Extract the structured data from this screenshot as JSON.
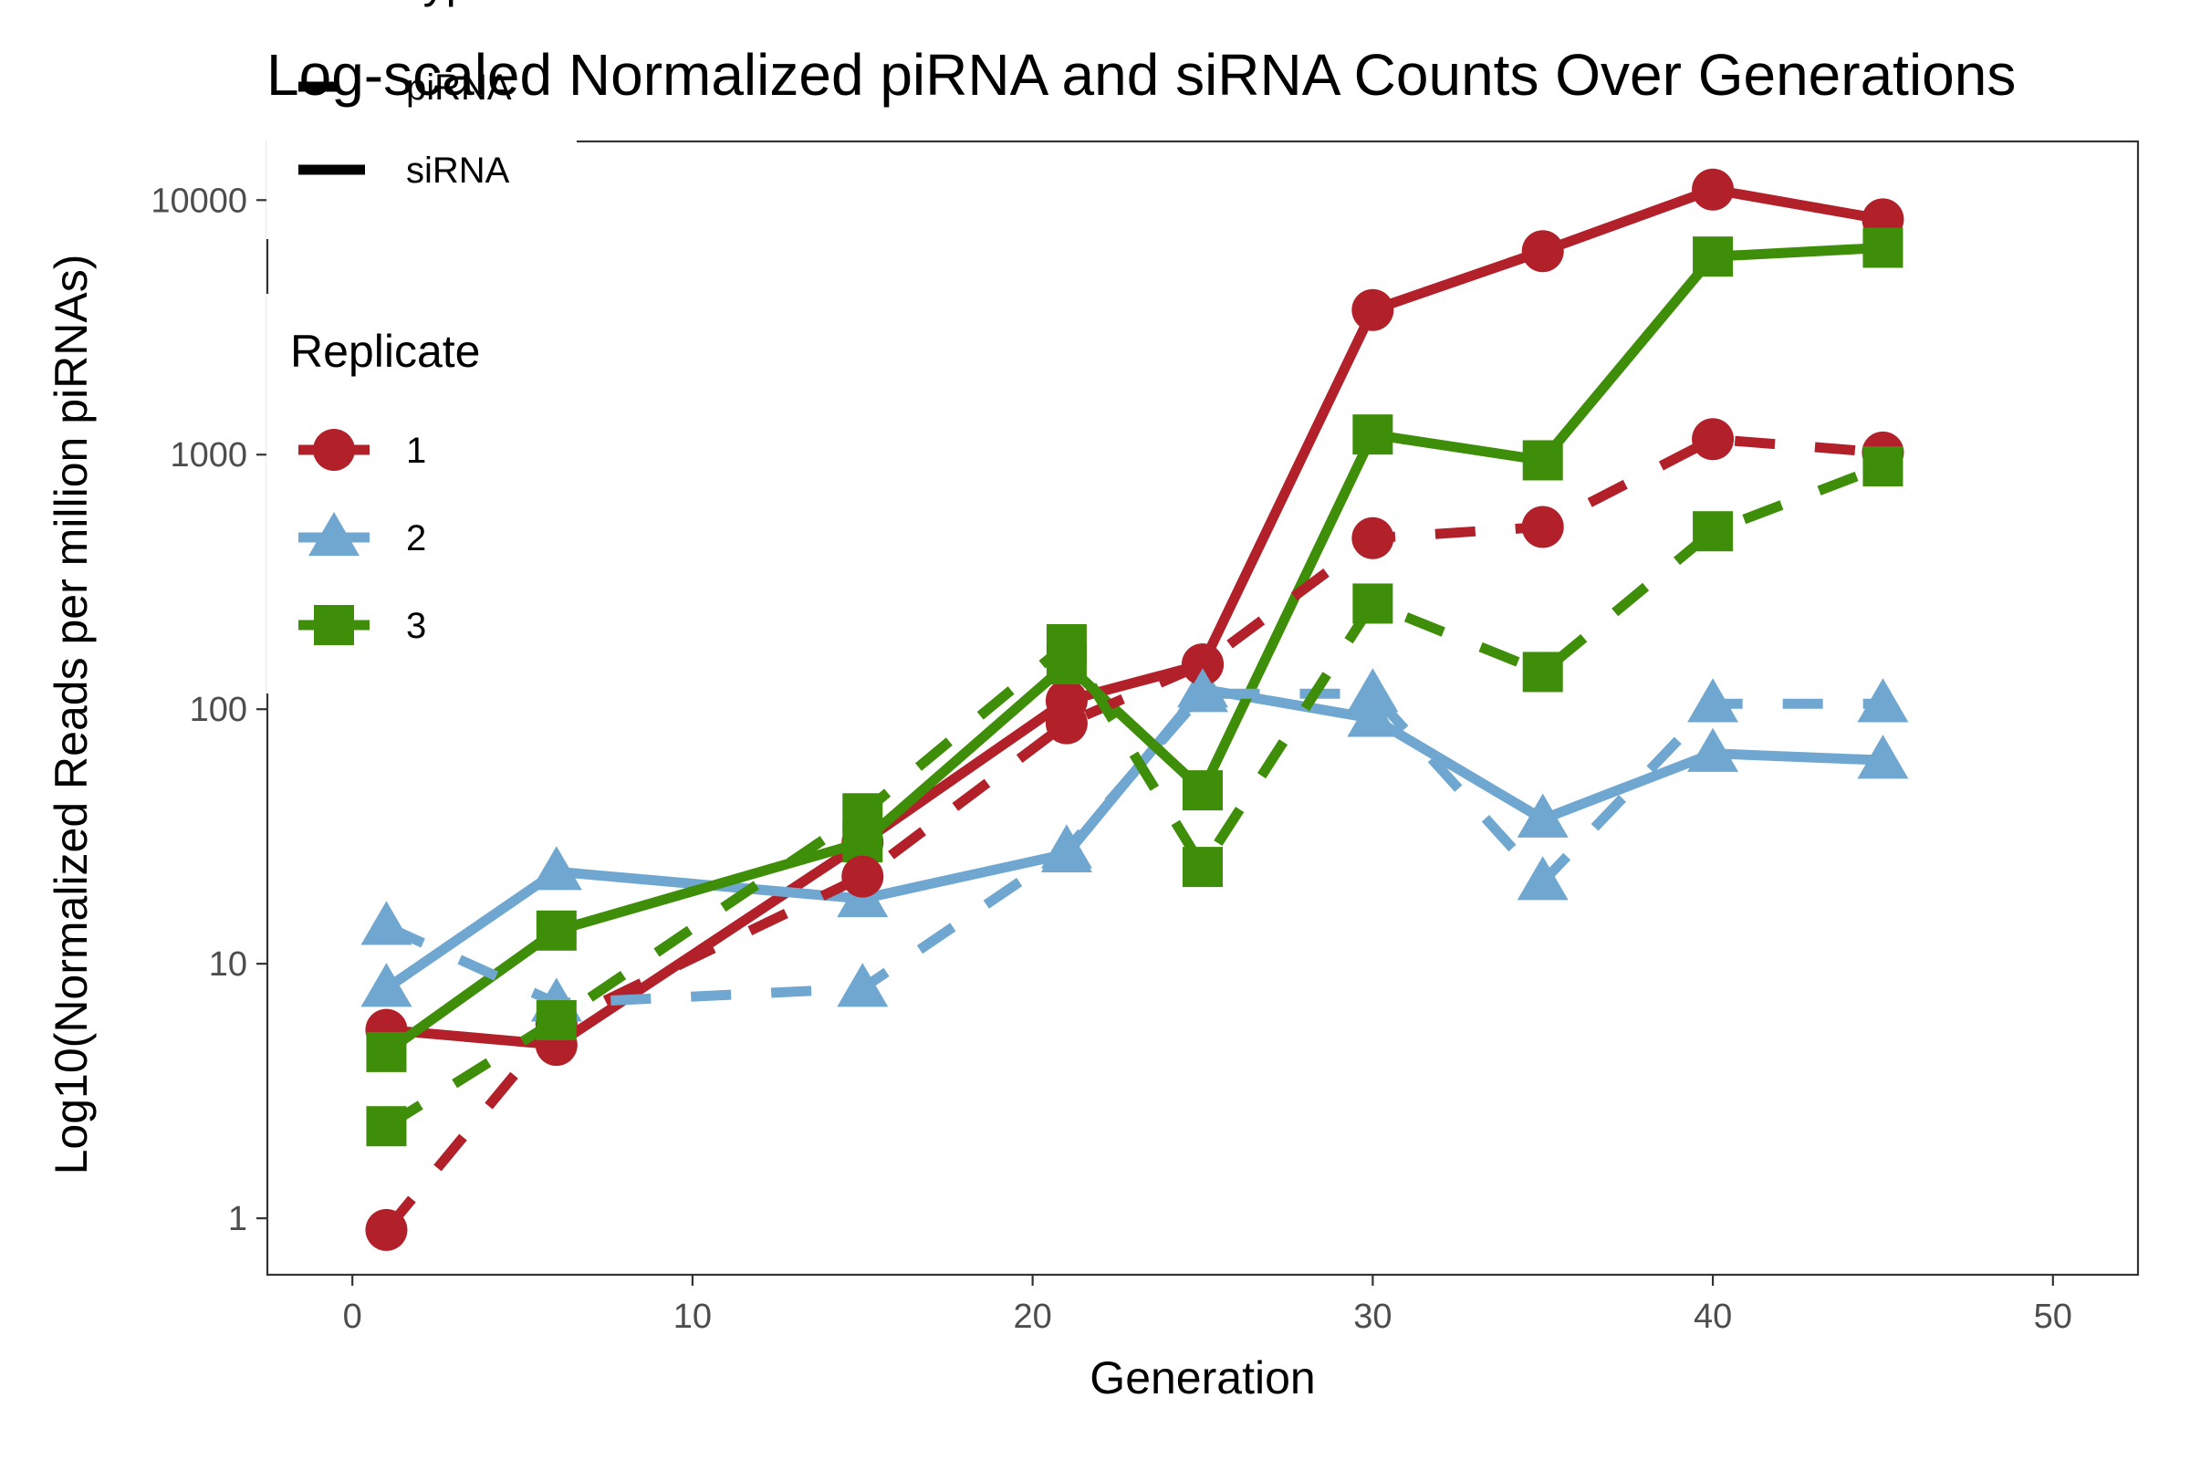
{
  "chart_data": {
    "type": "line",
    "title": "Log-scaled Normalized piRNA and siRNA Counts Over Generations",
    "xlabel": "Generation",
    "ylabel": "Log10(Normalized Reads per million piRNAs)",
    "xlim": [
      -2.5,
      52.5
    ],
    "x_ticks": [
      0,
      10,
      20,
      30,
      40,
      50
    ],
    "y_scale": "log10",
    "ylim": [
      0.6,
      17000
    ],
    "y_ticks": [
      1,
      10,
      100,
      1000,
      10000
    ],
    "y_tick_labels": [
      "1",
      "10",
      "100",
      "1000",
      "10000"
    ],
    "grid": false,
    "legend_position": "top-left",
    "legends": [
      {
        "title": "RNA Type",
        "entries": [
          {
            "label": "piRNA",
            "linetype": "dashed"
          },
          {
            "label": "siRNA",
            "linetype": "solid"
          }
        ]
      },
      {
        "title": "Replicate",
        "entries": [
          {
            "label": "1",
            "color": "#b2202a",
            "shape": "circle"
          },
          {
            "label": "2",
            "color": "#6fa7d1",
            "shape": "triangle"
          },
          {
            "label": "3",
            "color": "#3e8e0a",
            "shape": "square"
          }
        ]
      }
    ],
    "series": [
      {
        "rna_type": "siRNA",
        "replicate": "1",
        "color": "#b2202a",
        "shape": "circle",
        "linetype": "solid",
        "x": [
          1,
          6,
          15,
          21,
          25,
          30,
          35,
          40,
          45
        ],
        "y": [
          5.5,
          4.8,
          30,
          108,
          150,
          3700,
          6300,
          11000,
          8400
        ]
      },
      {
        "rna_type": "siRNA",
        "replicate": "2",
        "color": "#6fa7d1",
        "shape": "triangle",
        "linetype": "solid",
        "x": [
          1,
          6,
          15,
          21,
          25,
          30,
          35,
          40,
          45
        ],
        "y": [
          8,
          23,
          18,
          27,
          120,
          92,
          37,
          67,
          63
        ]
      },
      {
        "rna_type": "siRNA",
        "replicate": "3",
        "color": "#3e8e0a",
        "shape": "square",
        "linetype": "solid",
        "x": [
          1,
          6,
          15,
          21,
          25,
          30,
          35,
          40,
          45
        ],
        "y": [
          4.5,
          13.5,
          30,
          150,
          48,
          1200,
          950,
          6000,
          6500
        ]
      },
      {
        "rna_type": "piRNA",
        "replicate": "1",
        "color": "#b2202a",
        "shape": "circle",
        "linetype": "dashed",
        "x": [
          1,
          6,
          15,
          21,
          25,
          30,
          35,
          40,
          45
        ],
        "y": [
          0.9,
          5.8,
          22,
          88,
          150,
          470,
          520,
          1150,
          1020
        ]
      },
      {
        "rna_type": "piRNA",
        "replicate": "2",
        "color": "#6fa7d1",
        "shape": "triangle",
        "linetype": "dashed",
        "x": [
          1,
          6,
          15,
          21,
          25,
          30,
          35,
          40,
          45
        ],
        "y": [
          14,
          7,
          8,
          28,
          115,
          115,
          21,
          105,
          105
        ]
      },
      {
        "rna_type": "piRNA",
        "replicate": "3",
        "color": "#3e8e0a",
        "shape": "square",
        "linetype": "dashed",
        "x": [
          1,
          6,
          15,
          21,
          25,
          30,
          35,
          40,
          45
        ],
        "y": [
          2.3,
          6,
          39,
          180,
          24,
          260,
          140,
          500,
          900
        ]
      }
    ]
  }
}
